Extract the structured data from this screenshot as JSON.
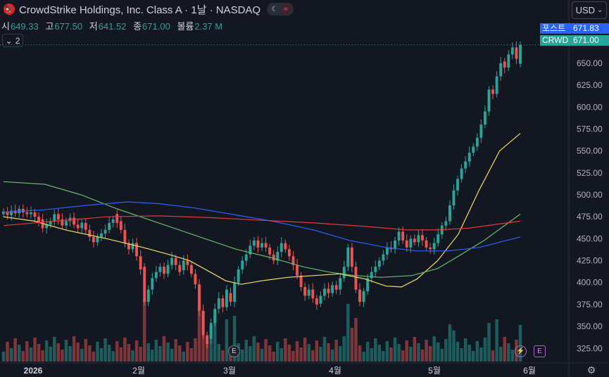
{
  "header": {
    "title": "CrowdStrike Holdings, Inc. Class A · 1날 · NASDAQ",
    "ohlc": [
      {
        "key": "시",
        "value": "649.33"
      },
      {
        "key": "고",
        "value": "677.50"
      },
      {
        "key": "저",
        "value": "641.52"
      },
      {
        "key": "종",
        "value": "671.00"
      },
      {
        "key": "볼륨",
        "value": "2.37 M"
      }
    ],
    "collapse_count": "2",
    "currency": "USD"
  },
  "price_labels": {
    "post_label": "포스트",
    "post_value": "671.83",
    "symbol": "CRWD",
    "last_value": "671.00"
  },
  "events": {
    "earnings_letter": "E",
    "dividend_letter": "E",
    "split_icon": "lightning-icon"
  },
  "colors": {
    "background": "#131722",
    "up": "#26a69a",
    "down": "#ef5350",
    "ma_yellow": "#f6e05e",
    "ma_green": "#66bb6a",
    "ma_blue": "#2962ff",
    "ma_red": "#e53935",
    "post_label_bg": "#2962ff",
    "last_label_bg": "#26a69a"
  },
  "chart_data": {
    "type": "candlestick",
    "symbol": "CRWD",
    "y_range": [
      310,
      690
    ],
    "y_ticks": [
      "650.00",
      "625.00",
      "600.00",
      "575.00",
      "550.00",
      "525.00",
      "500.00",
      "475.00",
      "450.00",
      "425.00",
      "400.00",
      "375.00",
      "350.00",
      "325.00"
    ],
    "x_ticks": [
      "2026",
      "2월",
      "3월",
      "4월",
      "5월",
      "6월"
    ],
    "price_levels": {
      "post": 671.83,
      "last": 671.0
    },
    "candles": [
      {
        "o": 478,
        "c": 481
      },
      {
        "o": 481,
        "c": 477
      },
      {
        "o": 477,
        "c": 482
      },
      {
        "o": 482,
        "c": 479
      },
      {
        "o": 479,
        "c": 484
      },
      {
        "o": 484,
        "c": 480
      },
      {
        "o": 480,
        "c": 478
      },
      {
        "o": 478,
        "c": 480
      },
      {
        "o": 480,
        "c": 475
      },
      {
        "o": 475,
        "c": 468
      },
      {
        "o": 472,
        "c": 462
      },
      {
        "o": 462,
        "c": 466
      },
      {
        "o": 466,
        "c": 470
      },
      {
        "o": 470,
        "c": 478
      },
      {
        "o": 478,
        "c": 472
      },
      {
        "o": 472,
        "c": 465
      },
      {
        "o": 465,
        "c": 470
      },
      {
        "o": 470,
        "c": 474
      },
      {
        "o": 474,
        "c": 466
      },
      {
        "o": 466,
        "c": 462
      },
      {
        "o": 462,
        "c": 468
      },
      {
        "o": 468,
        "c": 460
      },
      {
        "o": 460,
        "c": 452
      },
      {
        "o": 452,
        "c": 446
      },
      {
        "o": 446,
        "c": 452
      },
      {
        "o": 452,
        "c": 456
      },
      {
        "o": 456,
        "c": 460
      },
      {
        "o": 460,
        "c": 468
      },
      {
        "o": 468,
        "c": 472
      },
      {
        "o": 478,
        "c": 468
      },
      {
        "o": 470,
        "c": 460
      },
      {
        "o": 460,
        "c": 445
      },
      {
        "o": 445,
        "c": 438
      },
      {
        "o": 438,
        "c": 445
      },
      {
        "o": 445,
        "c": 430
      },
      {
        "o": 430,
        "c": 415
      },
      {
        "o": 418,
        "c": 378
      },
      {
        "o": 378,
        "c": 392
      },
      {
        "o": 392,
        "c": 405
      },
      {
        "o": 405,
        "c": 412
      },
      {
        "o": 412,
        "c": 418
      },
      {
        "o": 418,
        "c": 410
      },
      {
        "o": 410,
        "c": 420
      },
      {
        "o": 420,
        "c": 428
      },
      {
        "o": 428,
        "c": 420
      },
      {
        "o": 420,
        "c": 412
      },
      {
        "o": 414,
        "c": 425
      },
      {
        "o": 425,
        "c": 420
      },
      {
        "o": 420,
        "c": 410
      },
      {
        "o": 410,
        "c": 398
      },
      {
        "o": 398,
        "c": 368
      },
      {
        "o": 368,
        "c": 340
      },
      {
        "o": 340,
        "c": 330
      },
      {
        "o": 336,
        "c": 354
      },
      {
        "o": 354,
        "c": 370
      },
      {
        "o": 370,
        "c": 382
      },
      {
        "o": 382,
        "c": 372
      },
      {
        "o": 372,
        "c": 392
      },
      {
        "o": 388,
        "c": 378
      },
      {
        "o": 378,
        "c": 400
      },
      {
        "o": 400,
        "c": 415
      },
      {
        "o": 415,
        "c": 425
      },
      {
        "o": 425,
        "c": 432
      },
      {
        "o": 432,
        "c": 442
      },
      {
        "o": 442,
        "c": 448
      },
      {
        "o": 448,
        "c": 440
      },
      {
        "o": 440,
        "c": 445
      },
      {
        "o": 445,
        "c": 440
      },
      {
        "o": 440,
        "c": 432
      },
      {
        "o": 432,
        "c": 425
      },
      {
        "o": 425,
        "c": 435
      },
      {
        "o": 435,
        "c": 445
      },
      {
        "o": 445,
        "c": 438
      },
      {
        "o": 438,
        "c": 430
      },
      {
        "o": 430,
        "c": 420
      },
      {
        "o": 420,
        "c": 408
      },
      {
        "o": 408,
        "c": 395
      },
      {
        "o": 395,
        "c": 385
      },
      {
        "o": 385,
        "c": 392
      },
      {
        "o": 392,
        "c": 382
      },
      {
        "o": 382,
        "c": 375
      },
      {
        "o": 376,
        "c": 385
      },
      {
        "o": 385,
        "c": 393
      },
      {
        "o": 393,
        "c": 388
      },
      {
        "o": 388,
        "c": 397
      },
      {
        "o": 397,
        "c": 392
      },
      {
        "o": 392,
        "c": 405
      },
      {
        "o": 405,
        "c": 418
      },
      {
        "o": 418,
        "c": 440
      },
      {
        "o": 440,
        "c": 418
      },
      {
        "o": 418,
        "c": 392
      },
      {
        "o": 392,
        "c": 378
      },
      {
        "o": 378,
        "c": 390
      },
      {
        "o": 390,
        "c": 405
      },
      {
        "o": 405,
        "c": 412
      },
      {
        "o": 412,
        "c": 418
      },
      {
        "o": 418,
        "c": 425
      },
      {
        "o": 425,
        "c": 432
      },
      {
        "o": 432,
        "c": 440
      },
      {
        "o": 440,
        "c": 438
      },
      {
        "o": 438,
        "c": 448
      },
      {
        "o": 448,
        "c": 458
      },
      {
        "o": 458,
        "c": 448
      },
      {
        "o": 448,
        "c": 440
      },
      {
        "o": 440,
        "c": 450
      },
      {
        "o": 450,
        "c": 446
      },
      {
        "o": 446,
        "c": 454
      },
      {
        "o": 454,
        "c": 448
      },
      {
        "o": 448,
        "c": 440
      },
      {
        "o": 440,
        "c": 438
      },
      {
        "o": 438,
        "c": 445
      },
      {
        "o": 445,
        "c": 455
      },
      {
        "o": 455,
        "c": 465
      },
      {
        "o": 465,
        "c": 470
      },
      {
        "o": 470,
        "c": 488
      },
      {
        "o": 488,
        "c": 505
      },
      {
        "o": 505,
        "c": 518
      },
      {
        "o": 518,
        "c": 530
      },
      {
        "o": 530,
        "c": 538
      },
      {
        "o": 538,
        "c": 548
      },
      {
        "o": 548,
        "c": 555
      },
      {
        "o": 555,
        "c": 565
      },
      {
        "o": 565,
        "c": 580
      },
      {
        "o": 580,
        "c": 595
      },
      {
        "o": 595,
        "c": 620
      },
      {
        "o": 620,
        "c": 615
      },
      {
        "o": 615,
        "c": 635
      },
      {
        "o": 635,
        "c": 650
      },
      {
        "o": 652,
        "c": 645
      },
      {
        "o": 645,
        "c": 660
      },
      {
        "o": 660,
        "c": 668
      },
      {
        "o": 668,
        "c": 655
      },
      {
        "o": 649.33,
        "c": 671
      }
    ],
    "moving_averages": [
      {
        "color": "yellow",
        "values": [
          [
            0,
            475
          ],
          [
            0.06,
            470
          ],
          [
            0.12,
            460
          ],
          [
            0.2,
            450
          ],
          [
            0.27,
            440
          ],
          [
            0.32,
            432
          ],
          [
            0.36,
            425
          ],
          [
            0.4,
            412
          ],
          [
            0.43,
            402
          ],
          [
            0.46,
            398
          ],
          [
            0.5,
            402
          ],
          [
            0.55,
            406
          ],
          [
            0.6,
            408
          ],
          [
            0.65,
            410
          ],
          [
            0.7,
            404
          ],
          [
            0.74,
            396
          ],
          [
            0.77,
            395
          ],
          [
            0.8,
            404
          ],
          [
            0.84,
            425
          ],
          [
            0.88,
            455
          ],
          [
            0.92,
            505
          ],
          [
            0.96,
            550
          ],
          [
            1,
            570
          ]
        ]
      },
      {
        "color": "green",
        "values": [
          [
            0,
            515
          ],
          [
            0.08,
            512
          ],
          [
            0.15,
            500
          ],
          [
            0.22,
            484
          ],
          [
            0.3,
            468
          ],
          [
            0.38,
            452
          ],
          [
            0.45,
            438
          ],
          [
            0.52,
            428
          ],
          [
            0.58,
            418
          ],
          [
            0.63,
            412
          ],
          [
            0.68,
            408
          ],
          [
            0.73,
            406
          ],
          [
            0.79,
            408
          ],
          [
            0.84,
            416
          ],
          [
            0.88,
            430
          ],
          [
            0.93,
            448
          ],
          [
            1,
            478
          ]
        ]
      },
      {
        "color": "blue",
        "values": [
          [
            0,
            480
          ],
          [
            0.08,
            483
          ],
          [
            0.16,
            488
          ],
          [
            0.24,
            492
          ],
          [
            0.3,
            490
          ],
          [
            0.37,
            485
          ],
          [
            0.44,
            478
          ],
          [
            0.52,
            470
          ],
          [
            0.6,
            460
          ],
          [
            0.67,
            448
          ],
          [
            0.74,
            440
          ],
          [
            0.8,
            436
          ],
          [
            0.86,
            436
          ],
          [
            0.92,
            440
          ],
          [
            1,
            452
          ]
        ]
      },
      {
        "color": "red",
        "values": [
          [
            0,
            465
          ],
          [
            0.1,
            470
          ],
          [
            0.2,
            475
          ],
          [
            0.3,
            476
          ],
          [
            0.4,
            474
          ],
          [
            0.5,
            471
          ],
          [
            0.6,
            468
          ],
          [
            0.7,
            464
          ],
          [
            0.78,
            460
          ],
          [
            0.84,
            460
          ],
          [
            0.9,
            462
          ],
          [
            0.95,
            466
          ],
          [
            1,
            470
          ]
        ]
      }
    ]
  }
}
